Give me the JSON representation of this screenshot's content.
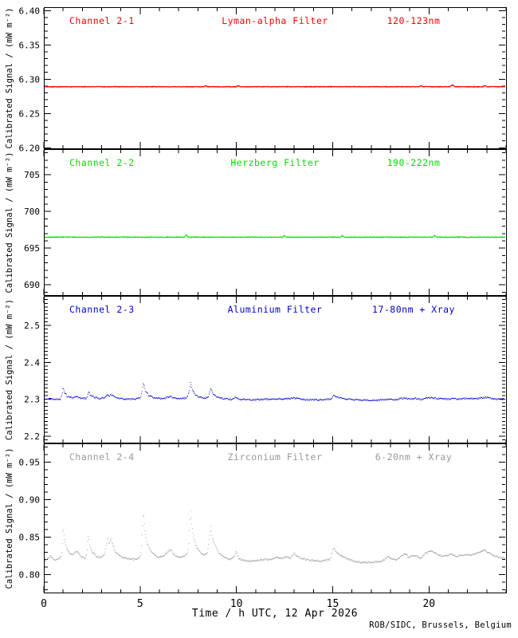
{
  "chart_data": {
    "type": "line",
    "layout": "four stacked panels, shared x-axis, dotted time-series",
    "xlabel": "Time / h UTC, 12 Apr 2026",
    "credit": "ROB/SIDC, Brussels, Belgium",
    "xlim": [
      0,
      24
    ],
    "x_minor_step": 1,
    "xticks": [
      {
        "label": "0",
        "v": 0
      },
      {
        "label": "5",
        "v": 5
      },
      {
        "label": "10",
        "v": 10
      },
      {
        "label": "15",
        "v": 15
      },
      {
        "label": "20",
        "v": 20
      }
    ],
    "panels": [
      {
        "channel": "Channel 2-1",
        "filter": "Lyman-alpha Filter",
        "band": "120-123nm",
        "color": "#ff0000",
        "ylabel": "Calibrated Signal / (mW m⁻²)",
        "ylim": [
          6.198,
          6.405
        ],
        "y_minor_step": 0.01,
        "yticks": [
          {
            "label": "6.40",
            "v": 6.4
          },
          {
            "label": "6.35",
            "v": 6.35
          },
          {
            "label": "6.30",
            "v": 6.3
          },
          {
            "label": "6.25",
            "v": 6.25
          },
          {
            "label": "6.20",
            "v": 6.2
          }
        ],
        "points": [
          [
            0,
            6.289
          ],
          [
            5.0,
            6.289
          ],
          [
            8.3,
            6.289
          ],
          [
            8.4,
            6.2905
          ],
          [
            8.5,
            6.289
          ],
          [
            10.0,
            6.289
          ],
          [
            10.1,
            6.2905
          ],
          [
            10.2,
            6.289
          ],
          [
            19.5,
            6.289
          ],
          [
            19.6,
            6.2905
          ],
          [
            19.7,
            6.289
          ],
          [
            21.1,
            6.289
          ],
          [
            21.2,
            6.292
          ],
          [
            21.35,
            6.289
          ],
          [
            22.8,
            6.289
          ],
          [
            22.9,
            6.2905
          ],
          [
            23.0,
            6.289
          ],
          [
            24,
            6.289
          ]
        ]
      },
      {
        "channel": "Channel 2-2",
        "filter": "Herzberg Filter",
        "band": "190-222nm",
        "color": "#00dd00",
        "ylabel": "Calibrated Signal / (mW m⁻²)",
        "ylim": [
          688.5,
          708.5
        ],
        "y_minor_step": 1,
        "yticks": [
          {
            "label": "705",
            "v": 705
          },
          {
            "label": "700",
            "v": 700
          },
          {
            "label": "695",
            "v": 695
          },
          {
            "label": "690",
            "v": 690
          }
        ],
        "points": [
          [
            0,
            696.5
          ],
          [
            7.3,
            696.5
          ],
          [
            7.4,
            696.8
          ],
          [
            7.5,
            696.5
          ],
          [
            12.4,
            696.5
          ],
          [
            12.5,
            696.75
          ],
          [
            12.6,
            696.5
          ],
          [
            15.4,
            696.5
          ],
          [
            15.5,
            696.7
          ],
          [
            15.6,
            696.5
          ],
          [
            20.2,
            696.5
          ],
          [
            20.3,
            696.75
          ],
          [
            20.4,
            696.5
          ],
          [
            24,
            696.5
          ]
        ]
      },
      {
        "channel": "Channel 2-3",
        "filter": "Aluminium Filter",
        "band": "17-80nm + Xray",
        "color": "#0000cd",
        "ylabel": "Calibrated Signal / (mW m⁻²)",
        "ylim": [
          2.18,
          2.58
        ],
        "y_minor_step": 0.01,
        "yticks": [
          {
            "label": "2.5",
            "v": 2.5
          },
          {
            "label": "2.4",
            "v": 2.4
          },
          {
            "label": "2.3",
            "v": 2.3
          },
          {
            "label": "2.2",
            "v": 2.2
          }
        ],
        "points": [
          [
            0,
            2.299
          ],
          [
            0.3,
            2.302
          ],
          [
            0.6,
            2.299
          ],
          [
            0.85,
            2.3
          ],
          [
            0.95,
            2.312
          ],
          [
            1.0,
            2.331
          ],
          [
            1.08,
            2.318
          ],
          [
            1.2,
            2.308
          ],
          [
            1.45,
            2.303
          ],
          [
            1.7,
            2.306
          ],
          [
            1.95,
            2.302
          ],
          [
            2.2,
            2.302
          ],
          [
            2.28,
            2.312
          ],
          [
            2.32,
            2.321
          ],
          [
            2.4,
            2.311
          ],
          [
            2.6,
            2.305
          ],
          [
            2.9,
            2.302
          ],
          [
            3.15,
            2.304
          ],
          [
            3.28,
            2.312
          ],
          [
            3.4,
            2.308
          ],
          [
            3.5,
            2.313
          ],
          [
            3.65,
            2.306
          ],
          [
            3.9,
            2.302
          ],
          [
            4.3,
            2.3
          ],
          [
            4.7,
            2.3
          ],
          [
            5.0,
            2.302
          ],
          [
            5.1,
            2.32
          ],
          [
            5.17,
            2.344
          ],
          [
            5.28,
            2.322
          ],
          [
            5.45,
            2.31
          ],
          [
            5.7,
            2.304
          ],
          [
            6.0,
            2.301
          ],
          [
            6.3,
            2.303
          ],
          [
            6.55,
            2.307
          ],
          [
            6.8,
            2.303
          ],
          [
            7.1,
            2.302
          ],
          [
            7.4,
            2.303
          ],
          [
            7.55,
            2.32
          ],
          [
            7.62,
            2.344
          ],
          [
            7.72,
            2.324
          ],
          [
            7.85,
            2.312
          ],
          [
            8.1,
            2.305
          ],
          [
            8.35,
            2.303
          ],
          [
            8.55,
            2.306
          ],
          [
            8.67,
            2.33
          ],
          [
            8.8,
            2.314
          ],
          [
            9.0,
            2.306
          ],
          [
            9.3,
            2.302
          ],
          [
            9.7,
            2.299
          ],
          [
            9.95,
            2.306
          ],
          [
            10.15,
            2.3
          ],
          [
            10.5,
            2.298
          ],
          [
            11.0,
            2.298
          ],
          [
            11.5,
            2.3
          ],
          [
            11.9,
            2.299
          ],
          [
            12.1,
            2.301
          ],
          [
            12.5,
            2.3
          ],
          [
            13.0,
            2.303
          ],
          [
            13.4,
            2.299
          ],
          [
            13.9,
            2.298
          ],
          [
            14.4,
            2.298
          ],
          [
            14.9,
            2.3
          ],
          [
            15.05,
            2.311
          ],
          [
            15.3,
            2.304
          ],
          [
            15.7,
            2.3
          ],
          [
            16.2,
            2.298
          ],
          [
            16.7,
            2.297
          ],
          [
            17.3,
            2.297
          ],
          [
            17.9,
            2.3
          ],
          [
            18.2,
            2.298
          ],
          [
            18.7,
            2.303
          ],
          [
            19.0,
            2.3
          ],
          [
            19.3,
            2.302
          ],
          [
            19.6,
            2.299
          ],
          [
            20.0,
            2.304
          ],
          [
            20.3,
            2.303
          ],
          [
            20.6,
            2.301
          ],
          [
            21.0,
            2.3
          ],
          [
            21.2,
            2.302
          ],
          [
            21.5,
            2.3
          ],
          [
            22.0,
            2.302
          ],
          [
            22.4,
            2.301
          ],
          [
            22.9,
            2.305
          ],
          [
            23.2,
            2.302
          ],
          [
            23.6,
            2.3
          ],
          [
            24,
            2.3
          ]
        ]
      },
      {
        "channel": "Channel 2-4",
        "filter": "Zirconium Filter",
        "band": "6-20nm + Xray",
        "color": "#999999",
        "ylabel": "Calibrated Signal / (mW m⁻²)",
        "ylim": [
          0.775,
          0.975
        ],
        "y_minor_step": 0.01,
        "yticks": [
          {
            "label": "0.95",
            "v": 0.95
          },
          {
            "label": "0.90",
            "v": 0.9
          },
          {
            "label": "0.85",
            "v": 0.85
          },
          {
            "label": "0.80",
            "v": 0.8
          }
        ],
        "points": [
          [
            0,
            0.818
          ],
          [
            0.15,
            0.82
          ],
          [
            0.35,
            0.825
          ],
          [
            0.55,
            0.819
          ],
          [
            0.85,
            0.822
          ],
          [
            0.92,
            0.826
          ],
          [
            0.97,
            0.845
          ],
          [
            1.0,
            0.864
          ],
          [
            1.05,
            0.852
          ],
          [
            1.12,
            0.84
          ],
          [
            1.25,
            0.831
          ],
          [
            1.45,
            0.826
          ],
          [
            1.7,
            0.831
          ],
          [
            1.95,
            0.824
          ],
          [
            2.15,
            0.822
          ],
          [
            2.24,
            0.828
          ],
          [
            2.3,
            0.854
          ],
          [
            2.37,
            0.84
          ],
          [
            2.5,
            0.83
          ],
          [
            2.7,
            0.825
          ],
          [
            2.95,
            0.823
          ],
          [
            3.15,
            0.827
          ],
          [
            3.25,
            0.84
          ],
          [
            3.32,
            0.849
          ],
          [
            3.4,
            0.84
          ],
          [
            3.48,
            0.847
          ],
          [
            3.6,
            0.838
          ],
          [
            3.75,
            0.829
          ],
          [
            4.0,
            0.824
          ],
          [
            4.35,
            0.821
          ],
          [
            4.7,
            0.82
          ],
          [
            4.95,
            0.822
          ],
          [
            5.05,
            0.83
          ],
          [
            5.12,
            0.86
          ],
          [
            5.17,
            0.882
          ],
          [
            5.25,
            0.858
          ],
          [
            5.35,
            0.843
          ],
          [
            5.5,
            0.833
          ],
          [
            5.7,
            0.827
          ],
          [
            5.95,
            0.823
          ],
          [
            6.2,
            0.824
          ],
          [
            6.45,
            0.831
          ],
          [
            6.6,
            0.833
          ],
          [
            6.75,
            0.827
          ],
          [
            7.0,
            0.823
          ],
          [
            7.25,
            0.824
          ],
          [
            7.45,
            0.827
          ],
          [
            7.53,
            0.84
          ],
          [
            7.58,
            0.87
          ],
          [
            7.62,
            0.886
          ],
          [
            7.7,
            0.862
          ],
          [
            7.8,
            0.847
          ],
          [
            7.95,
            0.836
          ],
          [
            8.15,
            0.829
          ],
          [
            8.35,
            0.826
          ],
          [
            8.5,
            0.83
          ],
          [
            8.6,
            0.85
          ],
          [
            8.67,
            0.864
          ],
          [
            8.75,
            0.85
          ],
          [
            8.9,
            0.838
          ],
          [
            9.1,
            0.829
          ],
          [
            9.35,
            0.823
          ],
          [
            9.7,
            0.82
          ],
          [
            9.9,
            0.824
          ],
          [
            9.97,
            0.831
          ],
          [
            10.1,
            0.822
          ],
          [
            10.35,
            0.819
          ],
          [
            10.7,
            0.818
          ],
          [
            11.1,
            0.819
          ],
          [
            11.5,
            0.82
          ],
          [
            11.85,
            0.82
          ],
          [
            12.05,
            0.824
          ],
          [
            12.3,
            0.821
          ],
          [
            12.55,
            0.823
          ],
          [
            12.8,
            0.822
          ],
          [
            13.0,
            0.828
          ],
          [
            13.25,
            0.823
          ],
          [
            13.6,
            0.82
          ],
          [
            14.0,
            0.819
          ],
          [
            14.45,
            0.818
          ],
          [
            14.85,
            0.82
          ],
          [
            15.0,
            0.832
          ],
          [
            15.07,
            0.836
          ],
          [
            15.2,
            0.83
          ],
          [
            15.45,
            0.825
          ],
          [
            15.75,
            0.821
          ],
          [
            16.1,
            0.818
          ],
          [
            16.5,
            0.816
          ],
          [
            16.9,
            0.816
          ],
          [
            17.3,
            0.817
          ],
          [
            17.65,
            0.819
          ],
          [
            17.85,
            0.824
          ],
          [
            18.05,
            0.821
          ],
          [
            18.35,
            0.82
          ],
          [
            18.6,
            0.826
          ],
          [
            18.75,
            0.828
          ],
          [
            18.95,
            0.823
          ],
          [
            19.2,
            0.825
          ],
          [
            19.35,
            0.826
          ],
          [
            19.55,
            0.822
          ],
          [
            19.85,
            0.829
          ],
          [
            20.1,
            0.831
          ],
          [
            20.25,
            0.83
          ],
          [
            20.5,
            0.826
          ],
          [
            20.75,
            0.824
          ],
          [
            21.0,
            0.826
          ],
          [
            21.2,
            0.827
          ],
          [
            21.45,
            0.824
          ],
          [
            21.7,
            0.826
          ],
          [
            21.95,
            0.827
          ],
          [
            22.2,
            0.826
          ],
          [
            22.5,
            0.828
          ],
          [
            22.75,
            0.831
          ],
          [
            22.9,
            0.833
          ],
          [
            23.1,
            0.829
          ],
          [
            23.35,
            0.825
          ],
          [
            23.6,
            0.823
          ],
          [
            23.85,
            0.822
          ],
          [
            24,
            0.822
          ]
        ]
      }
    ]
  }
}
